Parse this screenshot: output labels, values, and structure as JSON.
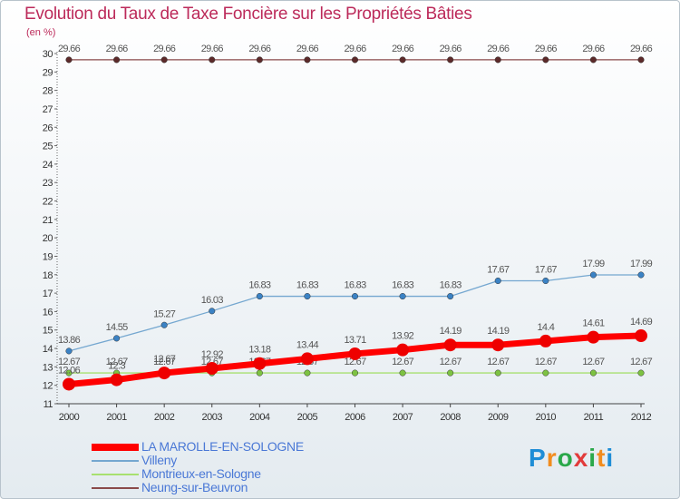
{
  "title": "Evolution du Taux de Taxe Foncière sur les Propriétés Bâties",
  "unit": "(en %)",
  "brand": {
    "letters": [
      "P",
      "r",
      "o",
      "x",
      "i",
      "t",
      "i"
    ],
    "colors": [
      "#1f8dd6",
      "#f28c1e",
      "#2aa84a",
      "#e23b3b",
      "#2aa84a",
      "#f28c1e",
      "#1f8dd6"
    ]
  },
  "chart_data": {
    "type": "line",
    "title": "Evolution du Taux de Taxe Foncière sur les Propriétés Bâties",
    "ylabel": "(en %)",
    "xlabel": "",
    "ylim": [
      11,
      30
    ],
    "yticks": [
      11,
      12,
      13,
      14,
      15,
      16,
      17,
      18,
      19,
      20,
      21,
      22,
      23,
      24,
      25,
      26,
      27,
      28,
      29,
      30
    ],
    "x": [
      "2000",
      "2001",
      "2002",
      "2003",
      "2004",
      "2005",
      "2006",
      "2007",
      "2008",
      "2009",
      "2010",
      "2011",
      "2012"
    ],
    "series": [
      {
        "name": "Neung-sur-Beuvron",
        "color": "#8a4a4a",
        "marker": "#5c2a2a",
        "values": [
          29.66,
          29.66,
          29.66,
          29.66,
          29.66,
          29.66,
          29.66,
          29.66,
          29.66,
          29.66,
          29.66,
          29.66,
          29.66
        ],
        "labels": [
          "29.66",
          "29.66",
          "29.66",
          "29.66",
          "29.66",
          "29.66",
          "29.66",
          "29.66",
          "29.66",
          "29.66",
          "29.66",
          "29.66",
          "29.66"
        ]
      },
      {
        "name": "Villeny",
        "color": "#74a7d0",
        "marker": "#3b82c4",
        "values": [
          13.86,
          14.55,
          15.27,
          16.03,
          16.83,
          16.83,
          16.83,
          16.83,
          16.83,
          17.67,
          17.67,
          17.99,
          17.99
        ],
        "labels": [
          "13.86",
          "14.55",
          "15.27",
          "16.03",
          "16.83",
          "16.83",
          "16.83",
          "16.83",
          "16.83",
          "17.67",
          "17.67",
          "17.99",
          "17.99"
        ]
      },
      {
        "name": "Montrieux-en-Sologne",
        "color": "#a8e070",
        "marker": "#7dc242",
        "values": [
          12.67,
          12.67,
          12.67,
          12.67,
          12.67,
          12.67,
          12.67,
          12.67,
          12.67,
          12.67,
          12.67,
          12.67,
          12.67
        ],
        "labels": [
          "12.67",
          "12.67",
          "12.67",
          "12.67",
          "12.67",
          "12.67",
          "12.67",
          "12.67",
          "12.67",
          "12.67",
          "12.67",
          "12.67",
          "12.67"
        ]
      },
      {
        "name": "LA MAROLLE-EN-SOLOGNE",
        "color": "#ff0000",
        "marker": "#ee0000",
        "values": [
          12.06,
          12.3,
          12.67,
          12.92,
          13.18,
          13.44,
          13.71,
          13.92,
          14.19,
          14.19,
          14.4,
          14.61,
          14.69
        ],
        "labels": [
          "12.06",
          "12.3",
          "12.67",
          "12.92",
          "13.18",
          "13.44",
          "13.71",
          "13.92",
          "14.19",
          "14.19",
          "14.4",
          "14.61",
          "14.69"
        ]
      }
    ],
    "legend": [
      {
        "name": "LA MAROLLE-EN-SOLOGNE",
        "color": "#ff0000",
        "weight": "thick"
      },
      {
        "name": "Villeny",
        "color": "#74a7d0",
        "weight": "thin"
      },
      {
        "name": "Montrieux-en-Sologne",
        "color": "#a8e070",
        "weight": "thin"
      },
      {
        "name": "Neung-sur-Beuvron",
        "color": "#8a4a4a",
        "weight": "thin"
      }
    ],
    "legend_position": "bottom-left"
  }
}
